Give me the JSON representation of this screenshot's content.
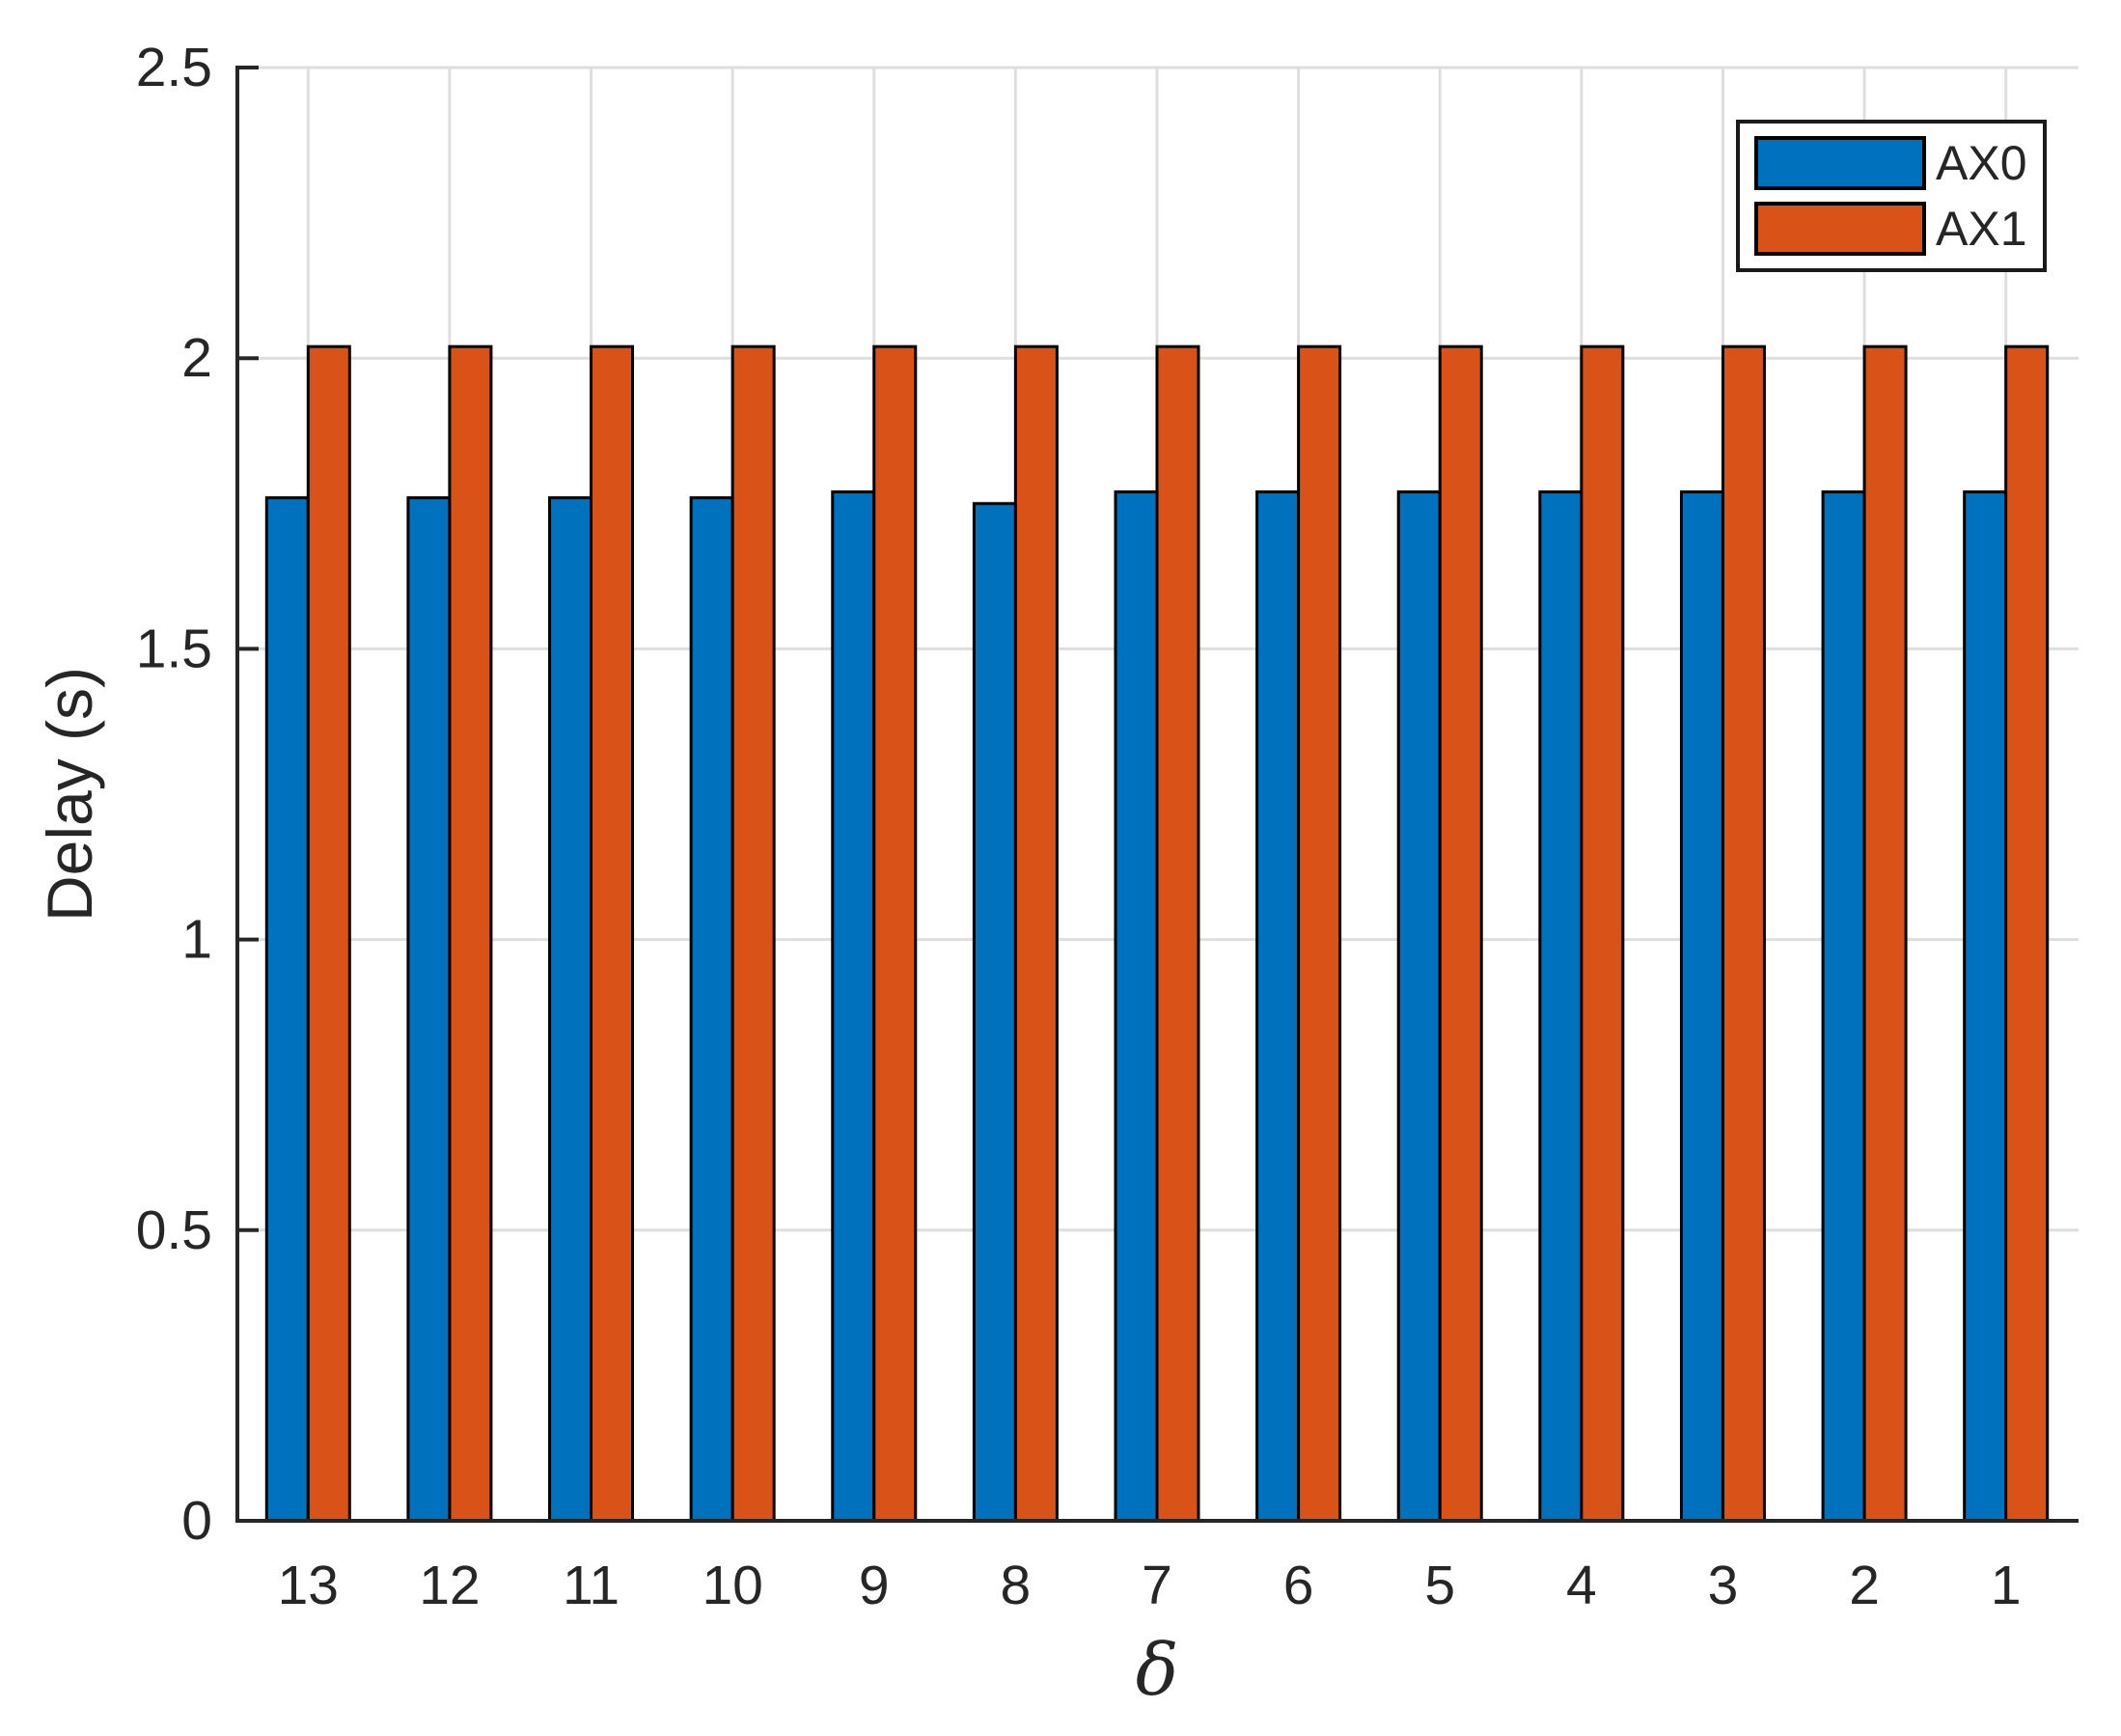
{
  "chart_data": {
    "type": "bar",
    "title": "",
    "xlabel": "δ",
    "ylabel": "Delay (s)",
    "categories": [
      "13",
      "12",
      "11",
      "10",
      "9",
      "8",
      "7",
      "6",
      "5",
      "4",
      "3",
      "2",
      "1"
    ],
    "series": [
      {
        "name": "AX0",
        "color": "#0072BD",
        "values": [
          1.76,
          1.76,
          1.76,
          1.76,
          1.77,
          1.75,
          1.77,
          1.77,
          1.77,
          1.77,
          1.77,
          1.77,
          1.77
        ]
      },
      {
        "name": "AX1",
        "color": "#D95319",
        "values": [
          2.02,
          2.02,
          2.02,
          2.02,
          2.02,
          2.02,
          2.02,
          2.02,
          2.02,
          2.02,
          2.02,
          2.02,
          2.02
        ]
      }
    ],
    "ylim": [
      0,
      2.5
    ],
    "yticks": [
      0,
      0.5,
      1,
      1.5,
      2,
      2.5
    ],
    "ytick_labels": [
      "0",
      "0.5",
      "1",
      "1.5",
      "2",
      "2.5"
    ],
    "grid": true,
    "legend_position": "northeast",
    "bar_edge_color": "#000000"
  },
  "colors": {
    "background": "#FFFFFF",
    "axis": "#262626",
    "grid": "#DEDEDE",
    "text": "#262626",
    "bar_edge": "#000000"
  }
}
